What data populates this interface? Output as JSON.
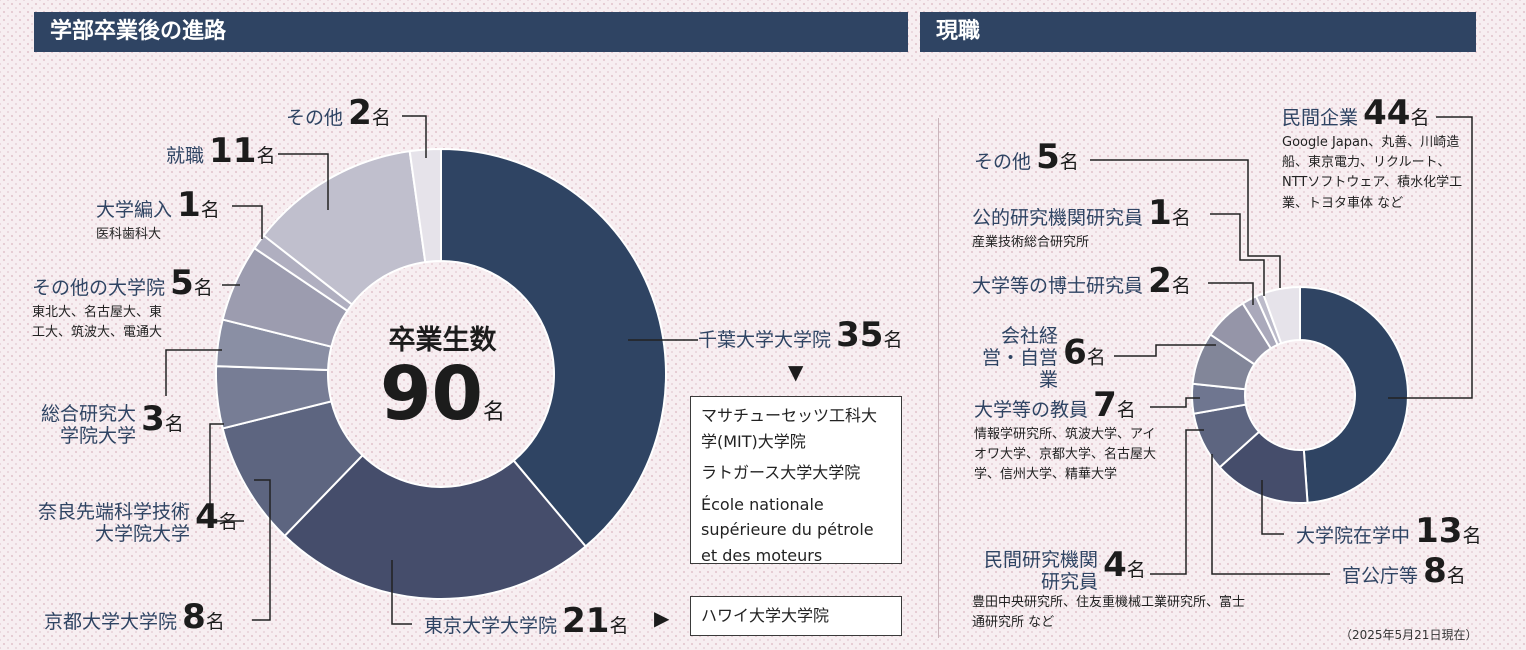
{
  "left": {
    "header": "学部卒業後の進路",
    "center_title": "卒業生数",
    "center_value": "90",
    "center_unit": "名",
    "arrow_down": "▼",
    "arrow_right": "▶",
    "box_a": [
      "マサチューセッツ工科大学(MIT)大学院",
      "ラトガース大学大学院",
      "École nationale supérieure du pétrole et des moteurs"
    ],
    "box_b": [
      "ハワイ大学大学院"
    ]
  },
  "right": {
    "header": "現職",
    "note": "（2025年5月21日現在）"
  },
  "chart_data": [
    {
      "type": "pie",
      "title": "学部卒業後の進路",
      "total": 90,
      "unit": "名",
      "slices": [
        {
          "label": "千葉大学大学院",
          "value": 35,
          "color": "#2f4463",
          "sub": ""
        },
        {
          "label": "東京大学大学院",
          "value": 21,
          "color": "#454d6b",
          "sub": ""
        },
        {
          "label": "京都大学大学院",
          "value": 8,
          "color": "#5d6580",
          "sub": ""
        },
        {
          "label": "奈良先端科学技術大学院大学",
          "value": 4,
          "color": "#777d95",
          "sub": ""
        },
        {
          "label": "総合研究大学院大学",
          "value": 3,
          "color": "#8a8fa4",
          "sub": ""
        },
        {
          "label": "その他の大学院",
          "value": 5,
          "color": "#9c9caf",
          "sub": "東北大、名古屋大、東工大、筑波大、電通大"
        },
        {
          "label": "大学編入",
          "value": 1,
          "color": "#b0afc0",
          "sub": "医科歯科大"
        },
        {
          "label": "就職",
          "value": 11,
          "color": "#c0bfcd",
          "sub": ""
        },
        {
          "label": "その他",
          "value": 2,
          "color": "#e6e3ea",
          "sub": ""
        }
      ]
    },
    {
      "type": "pie",
      "title": "現職",
      "unit": "名",
      "slices": [
        {
          "label": "民間企業",
          "value": 44,
          "color": "#2f4463",
          "sub": "Google Japan、丸善、川崎造船、東京電力、リクルート、NTTソフトウェア、積水化学工業、トヨタ車体 など"
        },
        {
          "label": "大学院在学中",
          "value": 13,
          "color": "#454d6b",
          "sub": ""
        },
        {
          "label": "官公庁等",
          "value": 8,
          "color": "#5d6580",
          "sub": ""
        },
        {
          "label": "民間研究機関研究員",
          "value": 4,
          "color": "#6f7690",
          "sub": "豊田中央研究所、住友重機械工業研究所、富士通研究所 など"
        },
        {
          "label": "大学等の教員",
          "value": 7,
          "color": "#828699",
          "sub": "情報学研究所、筑波大学、アイオワ大学、京都大学、名古屋大学、信州大学、精華大学"
        },
        {
          "label": "会社経営・自営業",
          "value": 6,
          "color": "#9595a8",
          "sub": ""
        },
        {
          "label": "大学等の博士研究員",
          "value": 2,
          "color": "#aaa9bb",
          "sub": ""
        },
        {
          "label": "公的研究機関研究員",
          "value": 1,
          "color": "#bcbbca",
          "sub": "産業技術総合研究所"
        },
        {
          "label": "その他",
          "value": 5,
          "color": "#e6e3ea",
          "sub": ""
        }
      ]
    }
  ]
}
